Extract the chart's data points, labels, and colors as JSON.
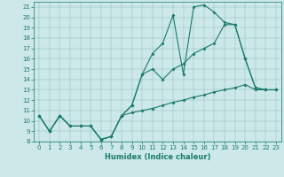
{
  "title": "",
  "xlabel": "Humidex (Indice chaleur)",
  "bg_color": "#cce8e8",
  "line_color": "#1a7a6e",
  "xlim": [
    -0.5,
    23.5
  ],
  "ylim": [
    8,
    21.5
  ],
  "yticks": [
    8,
    9,
    10,
    11,
    12,
    13,
    14,
    15,
    16,
    17,
    18,
    19,
    20,
    21
  ],
  "xticks": [
    0,
    1,
    2,
    3,
    4,
    5,
    6,
    7,
    8,
    9,
    10,
    11,
    12,
    13,
    14,
    15,
    16,
    17,
    18,
    19,
    20,
    21,
    22,
    23
  ],
  "line1_x": [
    0,
    1,
    2,
    3,
    4,
    5,
    6,
    7,
    8,
    9,
    10,
    11,
    12,
    13,
    14,
    15,
    16,
    17,
    18,
    19,
    20,
    21,
    22,
    23
  ],
  "line1_y": [
    10.5,
    9.0,
    10.5,
    9.5,
    9.5,
    9.5,
    8.2,
    8.5,
    10.5,
    11.5,
    14.5,
    16.5,
    17.5,
    20.2,
    14.5,
    21.0,
    21.2,
    20.5,
    19.5,
    19.3,
    16.0,
    13.2,
    13.0,
    13.0
  ],
  "line2_x": [
    0,
    1,
    2,
    3,
    4,
    5,
    6,
    7,
    8,
    9,
    10,
    11,
    12,
    13,
    14,
    15,
    16,
    17,
    18,
    19,
    20,
    21,
    22,
    23
  ],
  "line2_y": [
    10.5,
    9.0,
    10.5,
    9.5,
    9.5,
    9.5,
    8.2,
    8.5,
    10.5,
    11.5,
    14.5,
    15.0,
    14.0,
    15.0,
    15.5,
    16.5,
    17.0,
    17.5,
    19.3,
    19.3,
    16.0,
    13.2,
    13.0,
    13.0
  ],
  "line3_x": [
    0,
    1,
    2,
    3,
    4,
    5,
    6,
    7,
    8,
    9,
    10,
    11,
    12,
    13,
    14,
    15,
    16,
    17,
    18,
    19,
    20,
    21,
    22,
    23
  ],
  "line3_y": [
    10.5,
    9.0,
    10.5,
    9.5,
    9.5,
    9.5,
    8.2,
    8.5,
    10.5,
    10.8,
    11.0,
    11.2,
    11.5,
    11.8,
    12.0,
    12.3,
    12.5,
    12.8,
    13.0,
    13.2,
    13.5,
    13.0,
    13.0,
    13.0
  ],
  "xlabel_fontsize": 6,
  "tick_fontsize": 5,
  "marker_size": 2.0,
  "linewidth": 0.8
}
